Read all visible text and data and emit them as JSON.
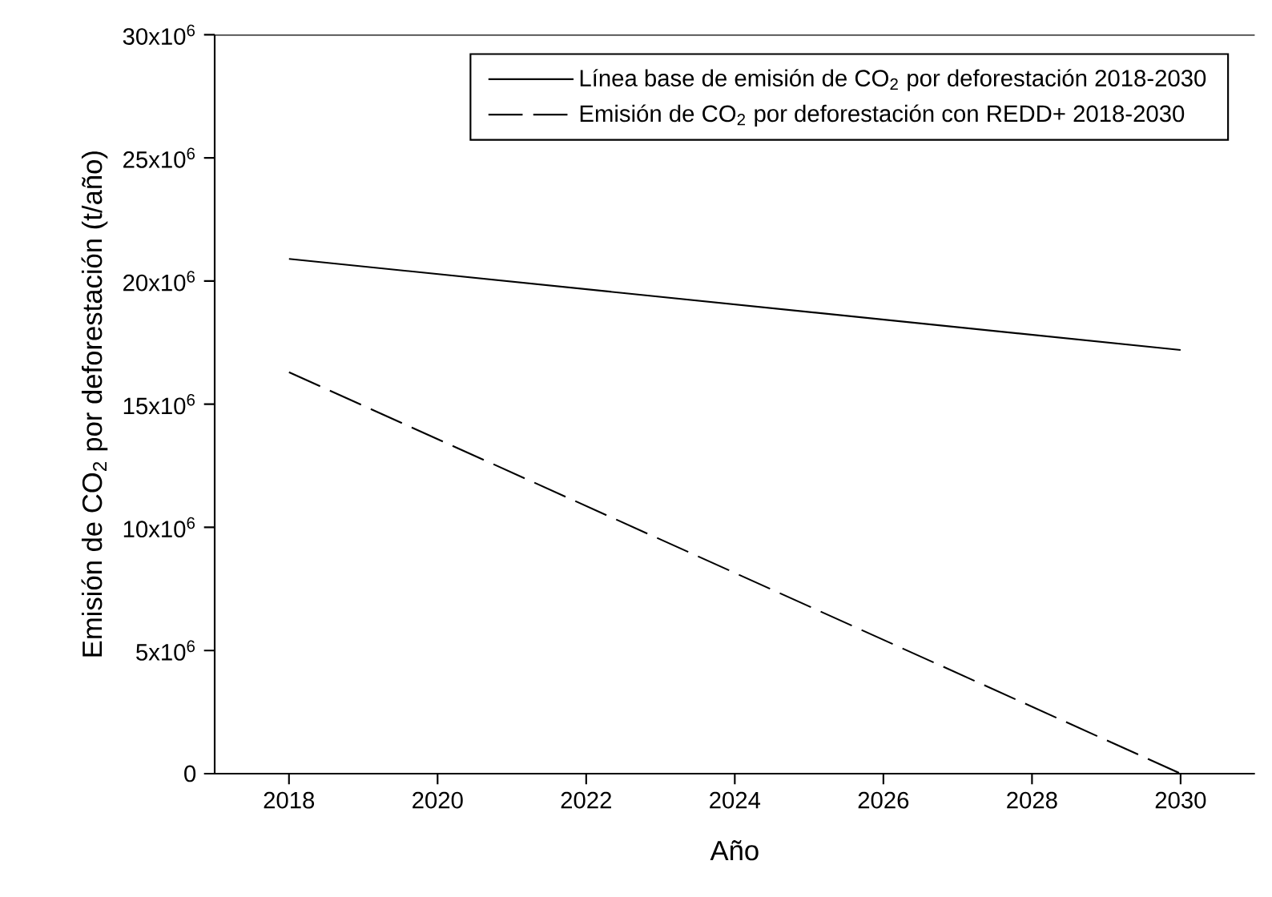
{
  "chart_data": {
    "type": "line",
    "xlabel": "Año",
    "ylabel": "Emisión de CO$_{2}$ por deforestación (t/año)",
    "x": [
      2018,
      2030
    ],
    "series": [
      {
        "name": "Línea base de emisión de CO$_{2}$ por deforestación 2018-2030",
        "color": "#000000",
        "line_style": "solid",
        "values": [
          20900000,
          17200000
        ]
      },
      {
        "name": "Emisión de CO$_{2}$ por deforestación con REDD+ 2018-2030",
        "color": "#000000",
        "line_style": "dashed",
        "values": [
          16300000,
          0
        ]
      }
    ],
    "xlim": [
      2017,
      2031
    ],
    "xticks": [
      2018,
      2020,
      2022,
      2024,
      2026,
      2028,
      2030
    ],
    "ylim": [
      0,
      30000000
    ],
    "yticks": [
      0,
      {
        "value": 5000000,
        "label": "5x10$^{6}$"
      },
      {
        "value": 10000000,
        "label": "10x10$^{6}$"
      },
      {
        "value": 15000000,
        "label": "15x10$^{6}$"
      },
      {
        "value": 20000000,
        "label": "20x10$^{6}$"
      },
      {
        "value": 25000000,
        "label": "25x10$^{6}$"
      },
      {
        "value": 30000000,
        "label": "30x10$^{6}$"
      }
    ],
    "legend": "top right",
    "marker": "none",
    "grid": false
  }
}
